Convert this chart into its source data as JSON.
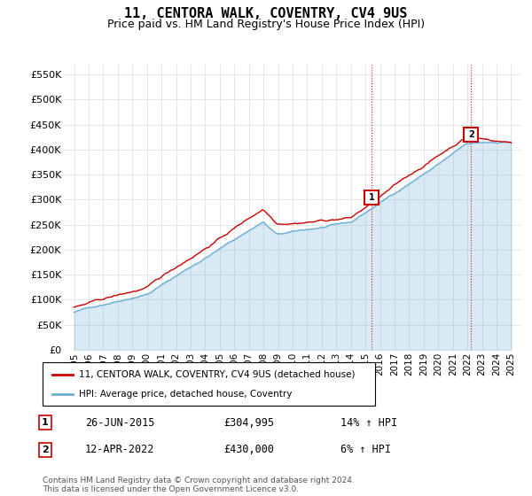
{
  "title": "11, CENTORA WALK, COVENTRY, CV4 9US",
  "subtitle": "Price paid vs. HM Land Registry's House Price Index (HPI)",
  "ylim": [
    0,
    570000
  ],
  "yticks": [
    0,
    50000,
    100000,
    150000,
    200000,
    250000,
    300000,
    350000,
    400000,
    450000,
    500000,
    550000
  ],
  "ytick_labels": [
    "£0",
    "£50K",
    "£100K",
    "£150K",
    "£200K",
    "£250K",
    "£300K",
    "£350K",
    "£400K",
    "£450K",
    "£500K",
    "£550K"
  ],
  "hpi_color": "#6baed6",
  "price_color": "#cc0000",
  "marker1_value": 304995,
  "marker2_value": 430000,
  "marker1_label": "1",
  "marker2_label": "2",
  "marker1_date_str": "26-JUN-2015",
  "marker2_date_str": "12-APR-2022",
  "marker1_price_str": "£304,995",
  "marker2_price_str": "£430,000",
  "marker1_hpi_pct": "14% ↑ HPI",
  "marker2_hpi_pct": "6% ↑ HPI",
  "legend_label1": "11, CENTORA WALK, COVENTRY, CV4 9US (detached house)",
  "legend_label2": "HPI: Average price, detached house, Coventry",
  "footer": "Contains HM Land Registry data © Crown copyright and database right 2024.\nThis data is licensed under the Open Government Licence v3.0.",
  "plot_bg_color": "#ffffff",
  "grid_color": "#dddddd"
}
